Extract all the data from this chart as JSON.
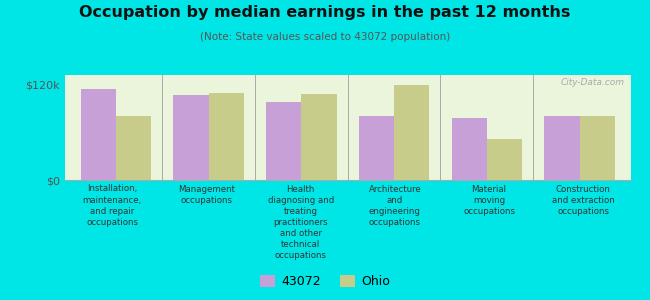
{
  "title": "Occupation by median earnings in the past 12 months",
  "subtitle": "(Note: State values scaled to 43072 population)",
  "categories": [
    "Installation,\nmaintenance,\nand repair\noccupations",
    "Management\noccupations",
    "Health\ndiagnosing and\ntreating\npractitioners\nand other\ntechnical\noccupations",
    "Architecture\nand\nengineering\noccupations",
    "Material\nmoving\noccupations",
    "Construction\nand extraction\noccupations"
  ],
  "values_43072": [
    114000,
    107000,
    98000,
    80000,
    78000,
    80000
  ],
  "values_ohio": [
    80000,
    110000,
    108000,
    120000,
    52000,
    80000
  ],
  "color_43072": "#c8a0d8",
  "color_ohio": "#c8cc8a",
  "ylim": [
    0,
    132000
  ],
  "ytick_vals": [
    0,
    120000
  ],
  "ytick_labels": [
    "$0",
    "$120k"
  ],
  "legend_43072": "43072",
  "legend_ohio": "Ohio",
  "background_color": "#eaf5dc",
  "outer_background": "#00e5e5",
  "watermark": "City-Data.com"
}
